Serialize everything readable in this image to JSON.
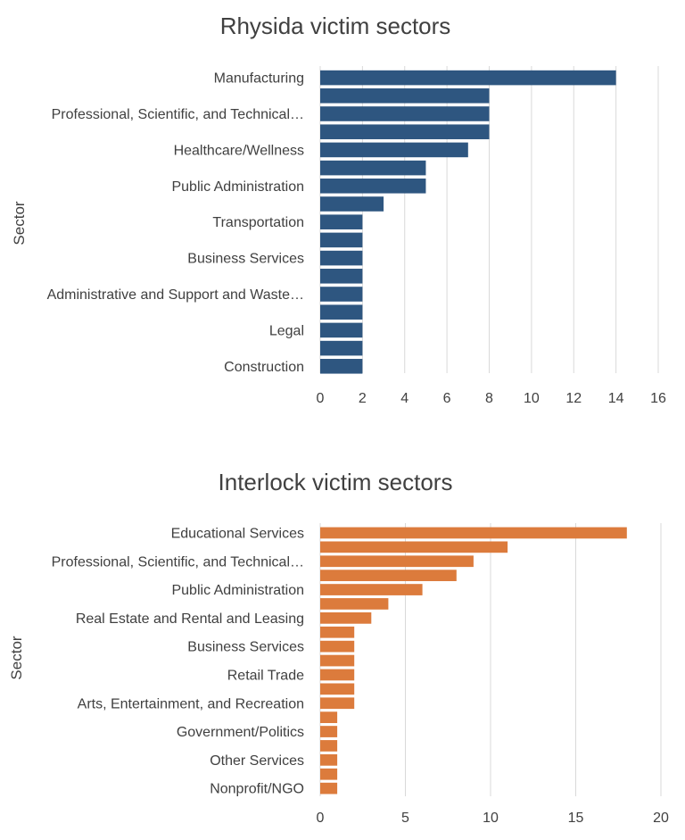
{
  "chart_data": [
    {
      "type": "bar",
      "orientation": "horizontal",
      "title": "Rhysida victim sectors",
      "ylabel": "Sector",
      "xlabel": "",
      "xlim": [
        0,
        16
      ],
      "xticks": [
        0,
        2,
        4,
        6,
        8,
        10,
        12,
        14,
        16
      ],
      "grid": true,
      "legend": "none",
      "color": "#2e5680",
      "categories": [
        "Manufacturing",
        "",
        "Professional, Scientific, and Technical…",
        "",
        "Healthcare/Wellness",
        "",
        "Public Administration",
        "",
        "Transportation",
        "",
        "Business Services",
        "",
        "Administrative and Support and Waste…",
        "",
        "Legal",
        "",
        "Construction"
      ],
      "values": [
        14,
        8,
        8,
        8,
        7,
        5,
        5,
        3,
        2,
        2,
        2,
        2,
        2,
        2,
        2,
        2,
        2
      ]
    },
    {
      "type": "bar",
      "orientation": "horizontal",
      "title": "Interlock victim sectors",
      "ylabel": "Sector",
      "xlabel": "",
      "xlim": [
        0,
        20
      ],
      "xticks": [
        0,
        5,
        10,
        15,
        20
      ],
      "grid": true,
      "legend": "none",
      "color": "#dc7b3c",
      "categories": [
        "Educational Services",
        "",
        "Professional, Scientific, and Technical…",
        "",
        "Public Administration",
        "",
        "Real Estate and Rental and Leasing",
        "",
        "Business Services",
        "",
        "Retail Trade",
        "",
        "Arts, Entertainment, and Recreation",
        "",
        "Government/Politics",
        "",
        "Other Services",
        "",
        "Nonprofit/NGO"
      ],
      "values": [
        18,
        11,
        9,
        8,
        6,
        4,
        3,
        2,
        2,
        2,
        2,
        2,
        2,
        1,
        1,
        1,
        1,
        1,
        1
      ]
    }
  ]
}
